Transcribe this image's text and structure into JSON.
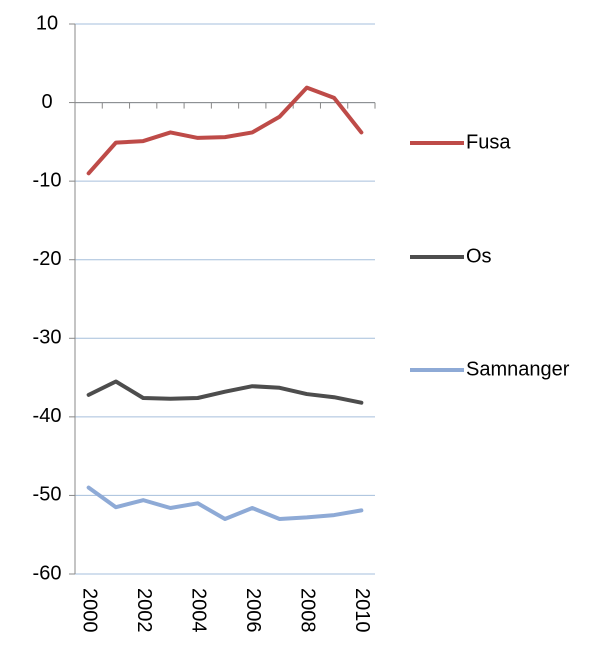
{
  "chart_data": {
    "type": "line",
    "categories": [
      "2000",
      null,
      "2002",
      null,
      "2004",
      null,
      "2006",
      null,
      "2008",
      null,
      "2010"
    ],
    "series": [
      {
        "name": "Fusa",
        "color": "#be4b48",
        "values": [
          -9.0,
          -5.1,
          -4.9,
          -3.8,
          -4.5,
          -4.4,
          -3.8,
          -1.8,
          1.9,
          0.6,
          -3.8
        ]
      },
      {
        "name": "Os",
        "color": "#4d4d4d",
        "values": [
          -37.2,
          -35.5,
          -37.6,
          -37.7,
          -37.6,
          -36.8,
          -36.1,
          -36.3,
          -37.1,
          -37.5,
          -38.2
        ]
      },
      {
        "name": "Samnanger",
        "color": "#8eaad6",
        "values": [
          -49.0,
          -51.5,
          -50.6,
          -51.6,
          -51.0,
          -53.0,
          -51.6,
          -53.0,
          -52.8,
          -52.5,
          -51.9
        ]
      }
    ],
    "ylim": [
      -60,
      10
    ],
    "yticks": [
      10,
      0,
      -10,
      -20,
      -30,
      -40,
      -50,
      -60
    ],
    "grid": true,
    "legend": "right"
  }
}
